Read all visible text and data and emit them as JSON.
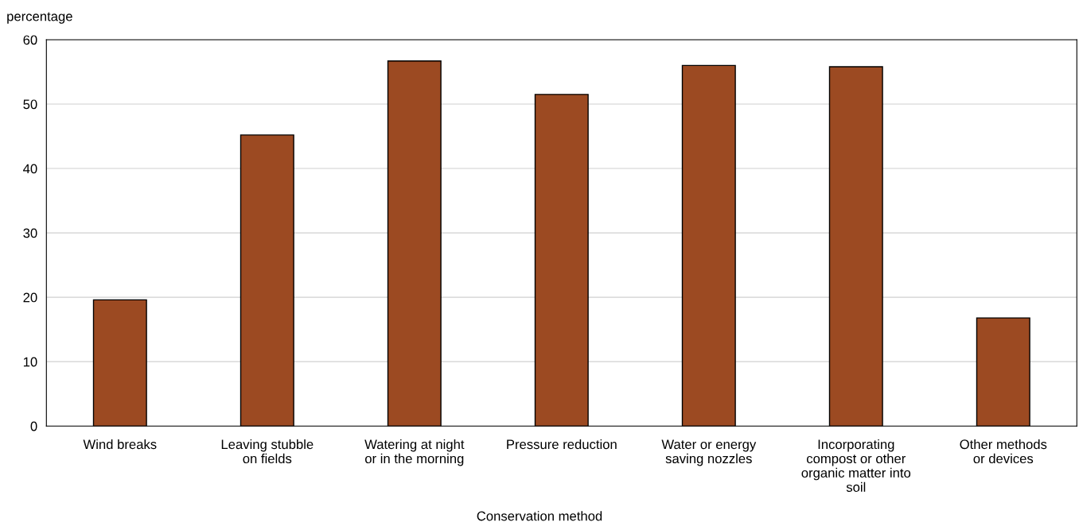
{
  "chart_data": {
    "type": "bar",
    "ylabel": "percentage",
    "xlabel": "Conservation method",
    "categories": [
      "Wind breaks",
      "Leaving stubble\non fields",
      "Watering at night\nor in the morning",
      "Pressure reduction",
      "Water or energy\nsaving nozzles",
      "Incorporating\ncompost or other\norganic matter into\nsoil",
      "Other methods\nor devices"
    ],
    "values": [
      19.6,
      45.2,
      56.7,
      51.5,
      56.0,
      55.8,
      16.8
    ],
    "color": "#9c4a22",
    "ylim": [
      0,
      60
    ],
    "yticks": [
      0,
      10,
      20,
      30,
      40,
      50,
      60
    ],
    "grid": "y",
    "legend": false
  }
}
